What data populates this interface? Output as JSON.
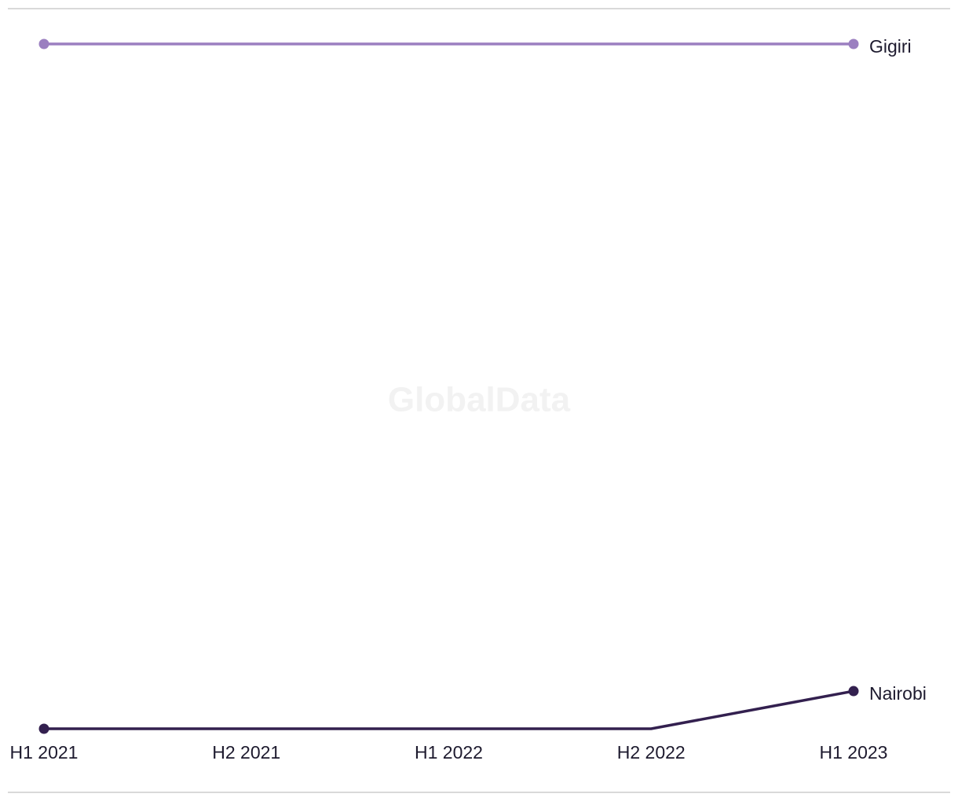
{
  "watermark": "GlobalData",
  "chart_data": {
    "type": "line",
    "categories": [
      "H1 2021",
      "H2 2021",
      "H1 2022",
      "H2 2022",
      "H1 2023"
    ],
    "series": [
      {
        "name": "Gigiri",
        "color": "#9b7fc0",
        "values": [
          100,
          100,
          100,
          100,
          100
        ]
      },
      {
        "name": "Nairobi",
        "color": "#33204f",
        "values": [
          0,
          0,
          0,
          0,
          5.5
        ]
      }
    ],
    "ylim": [
      0,
      100
    ]
  }
}
